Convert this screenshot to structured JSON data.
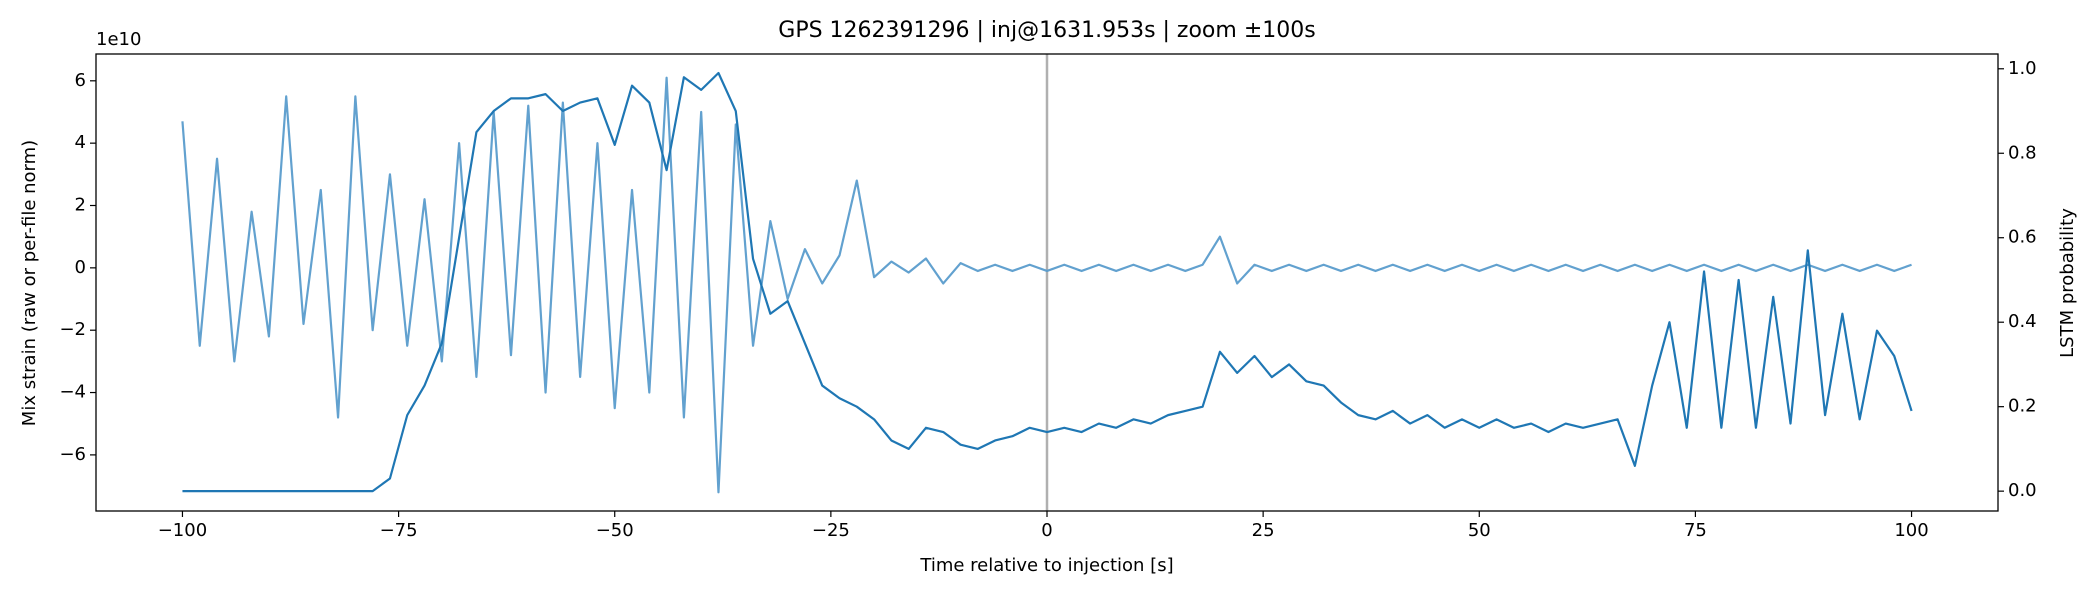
{
  "chart_data": {
    "type": "line",
    "title": "GPS 1262391296 | inj@1631.953s | zoom ±100s",
    "x_label": "Time relative to injection [s]",
    "y_label": "Mix strain (raw or per-file norm)",
    "y_offset_label": "1e10",
    "y2_label": "LSTM probability",
    "xlim": [
      -110,
      110
    ],
    "xticks": [
      {
        "value": -100,
        "label": "−100"
      },
      {
        "value": -75,
        "label": "−75"
      },
      {
        "value": -50,
        "label": "−50"
      },
      {
        "value": -25,
        "label": "−25"
      },
      0,
      25,
      50,
      75,
      100
    ],
    "ylim": [
      -7.8,
      6.86
    ],
    "yticks": [
      {
        "value": -6,
        "label": "−6"
      },
      {
        "value": -4,
        "label": "−4"
      },
      {
        "value": -2,
        "label": "−2"
      },
      0,
      2,
      4,
      6
    ],
    "y2lim": [
      -0.047,
      1.035
    ],
    "y2ticks": [
      {
        "value": 0,
        "label": "0.0"
      },
      {
        "value": 0.2,
        "label": "0.2"
      },
      {
        "value": 0.4,
        "label": "0.4"
      },
      {
        "value": 0.6,
        "label": "0.6"
      },
      {
        "value": 0.8,
        "label": "0.8"
      },
      {
        "value": 1,
        "label": "1.0"
      }
    ],
    "vlines": [
      0
    ],
    "grid": false,
    "x": [
      -100,
      -98,
      -96,
      -94,
      -92,
      -90,
      -88,
      -86,
      -84,
      -82,
      -80,
      -78,
      -76,
      -74,
      -72,
      -70,
      -68,
      -66,
      -64,
      -62,
      -60,
      -58,
      -56,
      -54,
      -52,
      -50,
      -48,
      -46,
      -44,
      -42,
      -40,
      -38,
      -36,
      -34,
      -32,
      -30,
      -28,
      -26,
      -24,
      -22,
      -20,
      -18,
      -16,
      -14,
      -12,
      -10,
      -8,
      -6,
      -4,
      -2,
      0,
      2,
      4,
      6,
      8,
      10,
      12,
      14,
      16,
      18,
      20,
      22,
      24,
      26,
      28,
      30,
      32,
      34,
      36,
      38,
      40,
      42,
      44,
      46,
      48,
      50,
      52,
      54,
      56,
      58,
      60,
      62,
      64,
      66,
      68,
      70,
      72,
      74,
      76,
      78,
      80,
      82,
      84,
      86,
      88,
      90,
      92,
      94,
      96,
      98,
      100
    ],
    "series": [
      {
        "color": "#5a9ccc",
        "axis": "y",
        "values": [
          4.7,
          -2.5,
          3.5,
          -3.0,
          1.8,
          -2.2,
          5.5,
          -1.8,
          2.5,
          -4.8,
          5.5,
          -2.0,
          3.0,
          -2.5,
          2.2,
          -3.0,
          4.0,
          -3.5,
          5.0,
          -2.8,
          5.2,
          -4.0,
          5.3,
          -3.5,
          4.0,
          -4.5,
          2.5,
          -4.0,
          6.1,
          -4.8,
          5.0,
          -7.2,
          4.6,
          -2.5,
          1.5,
          -1.0,
          0.6,
          -0.5,
          0.4,
          2.8,
          -0.3,
          0.2,
          -0.15,
          0.3,
          -0.5,
          0.15,
          -0.1,
          0.1,
          -0.1,
          0.1,
          -0.1,
          0.1,
          -0.1,
          0.1,
          -0.1,
          0.1,
          -0.1,
          0.1,
          -0.1,
          0.1,
          1.0,
          -0.5,
          0.1,
          -0.1,
          0.1,
          -0.1,
          0.1,
          -0.1,
          0.1,
          -0.1,
          0.1,
          -0.1,
          0.1,
          -0.1,
          0.1,
          -0.1,
          0.1,
          -0.1,
          0.1,
          -0.1,
          0.1,
          -0.1,
          0.1,
          -0.1,
          0.1,
          -0.1,
          0.1,
          -0.1,
          0.1,
          -0.1,
          0.1,
          -0.1,
          0.1,
          -0.1,
          0.1,
          -0.1,
          0.1,
          -0.1,
          0.1,
          -0.1,
          0.1
        ]
      },
      {
        "color": "#1f77b4",
        "axis": "y2",
        "values": [
          0.0,
          0.0,
          0.0,
          0.0,
          0.0,
          0.0,
          0.0,
          0.0,
          0.0,
          0.0,
          0.0,
          0.0,
          0.03,
          0.18,
          0.25,
          0.35,
          0.6,
          0.85,
          0.9,
          0.93,
          0.93,
          0.94,
          0.9,
          0.92,
          0.93,
          0.82,
          0.96,
          0.92,
          0.76,
          0.98,
          0.95,
          0.99,
          0.9,
          0.55,
          0.42,
          0.45,
          0.35,
          0.25,
          0.22,
          0.2,
          0.17,
          0.12,
          0.1,
          0.15,
          0.14,
          0.11,
          0.1,
          0.12,
          0.13,
          0.15,
          0.14,
          0.15,
          0.14,
          0.16,
          0.15,
          0.17,
          0.16,
          0.18,
          0.19,
          0.2,
          0.33,
          0.28,
          0.32,
          0.27,
          0.3,
          0.26,
          0.25,
          0.21,
          0.18,
          0.17,
          0.19,
          0.16,
          0.18,
          0.15,
          0.17,
          0.15,
          0.17,
          0.15,
          0.16,
          0.14,
          0.16,
          0.15,
          0.16,
          0.17,
          0.06,
          0.25,
          0.4,
          0.15,
          0.52,
          0.15,
          0.5,
          0.15,
          0.46,
          0.16,
          0.57,
          0.18,
          0.42,
          0.17,
          0.38,
          0.32,
          0.19
        ]
      }
    ]
  }
}
